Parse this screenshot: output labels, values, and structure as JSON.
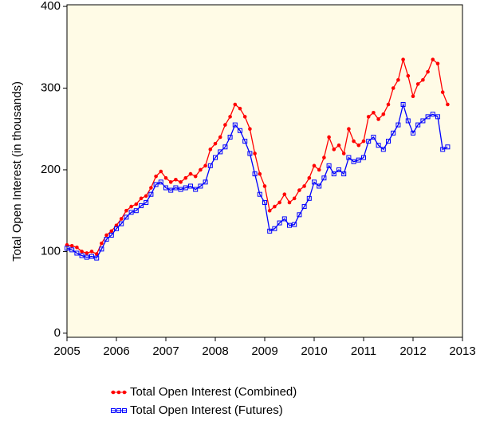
{
  "chart_data": {
    "type": "line",
    "y_label": "Total Open Interest (in thousands)",
    "x": [
      2005.0,
      2005.1,
      2005.2,
      2005.3,
      2005.4,
      2005.5,
      2005.6,
      2005.7,
      2005.8,
      2005.9,
      2006.0,
      2006.1,
      2006.2,
      2006.3,
      2006.4,
      2006.5,
      2006.6,
      2006.7,
      2006.8,
      2006.9,
      2007.0,
      2007.1,
      2007.2,
      2007.3,
      2007.4,
      2007.5,
      2007.6,
      2007.7,
      2007.8,
      2007.9,
      2008.0,
      2008.1,
      2008.2,
      2008.3,
      2008.4,
      2008.5,
      2008.6,
      2008.7,
      2008.8,
      2008.9,
      2009.0,
      2009.1,
      2009.2,
      2009.3,
      2009.4,
      2009.5,
      2009.6,
      2009.7,
      2009.8,
      2009.9,
      2010.0,
      2010.1,
      2010.2,
      2010.3,
      2010.4,
      2010.5,
      2010.6,
      2010.7,
      2010.8,
      2010.9,
      2011.0,
      2011.1,
      2011.2,
      2011.3,
      2011.4,
      2011.5,
      2011.6,
      2011.7,
      2011.8,
      2011.9,
      2012.0,
      2012.1,
      2012.2,
      2012.3,
      2012.4,
      2012.5,
      2012.6,
      2012.7
    ],
    "series": [
      {
        "name": "Total Open Interest (Combined)",
        "color": "#ff0000",
        "marker": "circle",
        "values": [
          108,
          107,
          105,
          100,
          98,
          100,
          97,
          110,
          120,
          125,
          132,
          140,
          150,
          155,
          158,
          165,
          168,
          178,
          192,
          198,
          190,
          185,
          188,
          185,
          190,
          195,
          192,
          200,
          205,
          225,
          232,
          240,
          255,
          265,
          280,
          275,
          265,
          250,
          220,
          195,
          180,
          150,
          155,
          160,
          170,
          160,
          165,
          175,
          180,
          190,
          205,
          200,
          215,
          240,
          225,
          230,
          220,
          250,
          235,
          230,
          235,
          265,
          270,
          262,
          268,
          280,
          300,
          310,
          335,
          315,
          290,
          305,
          310,
          320,
          335,
          330,
          295,
          280
        ]
      },
      {
        "name": "Total Open Interest (Futures)",
        "color": "#0000ff",
        "marker": "square",
        "values": [
          104,
          102,
          98,
          95,
          93,
          94,
          92,
          103,
          115,
          120,
          128,
          134,
          142,
          148,
          150,
          156,
          160,
          170,
          182,
          185,
          178,
          175,
          178,
          176,
          178,
          180,
          176,
          180,
          185,
          205,
          215,
          222,
          228,
          240,
          255,
          248,
          235,
          220,
          195,
          170,
          160,
          125,
          128,
          135,
          140,
          132,
          133,
          145,
          155,
          165,
          185,
          180,
          190,
          205,
          195,
          200,
          195,
          215,
          210,
          212,
          215,
          235,
          240,
          230,
          225,
          235,
          245,
          255,
          280,
          260,
          245,
          255,
          260,
          265,
          268,
          265,
          225,
          228
        ]
      }
    ],
    "xlim": [
      2005,
      2013
    ],
    "xticks": [
      2005,
      2006,
      2007,
      2008,
      2009,
      2010,
      2011,
      2012,
      2013
    ],
    "ylim": [
      -5,
      402
    ],
    "yticks": [
      0,
      100,
      200,
      300,
      400
    ],
    "background": "#fffbe6",
    "legend": "bottom"
  }
}
